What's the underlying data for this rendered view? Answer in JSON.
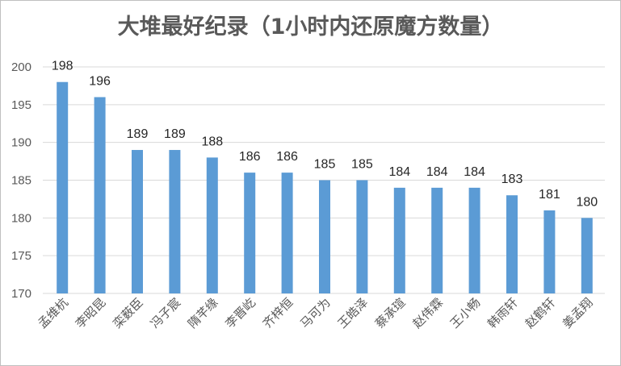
{
  "chart_data": {
    "type": "bar",
    "title": "大堆最好纪录（1小时内还原魔方数量）",
    "categories": [
      "孟维杭",
      "李昭昆",
      "栾薮臣",
      "冯子宸",
      "隋芊缘",
      "李晋屹",
      "齐梓恒",
      "马可为",
      "王皓泽",
      "蔡承瑄",
      "赵伟霖",
      "王小畅",
      "韩雨轩",
      "赵鹤轩",
      "姜孟翔"
    ],
    "values": [
      198,
      196,
      189,
      189,
      188,
      186,
      186,
      185,
      185,
      184,
      184,
      184,
      183,
      181,
      180
    ],
    "ylim": [
      170,
      200
    ],
    "yticks": [
      170,
      175,
      180,
      185,
      190,
      195,
      200
    ],
    "grid": true,
    "legend": "none",
    "bar_color": "#5b9bd5"
  }
}
